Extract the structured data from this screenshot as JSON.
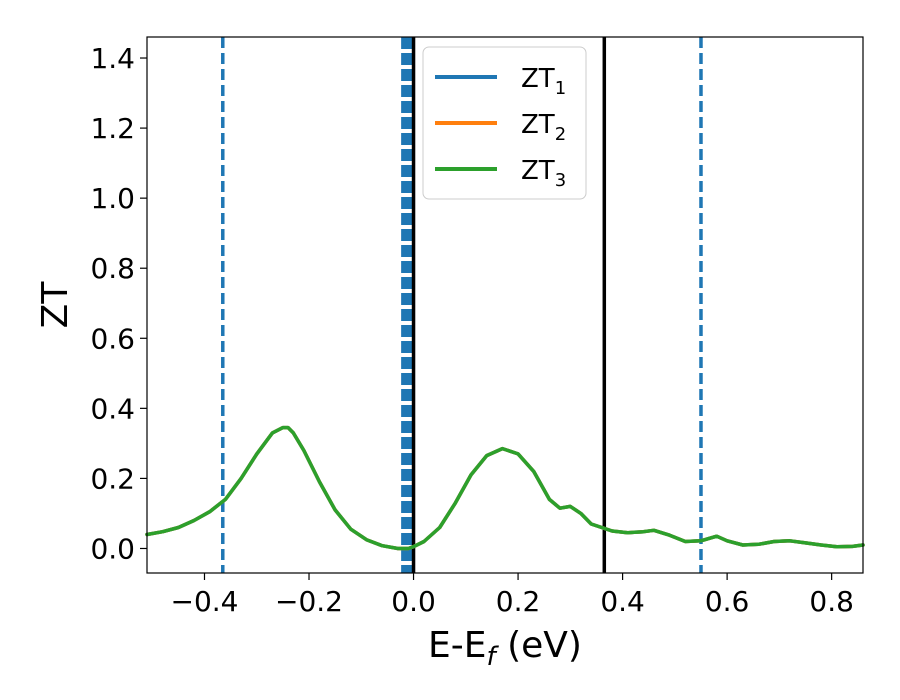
{
  "chart_data": {
    "type": "line",
    "xlabel": "E-E",
    "xlabel_sub": "f",
    "xlabel_unit": " (eV)",
    "ylabel": "ZT",
    "xlim": [
      -0.51,
      0.86
    ],
    "ylim": [
      -0.07,
      1.46
    ],
    "grid": false,
    "legend_position": "top-center",
    "xticks": [
      -0.4,
      -0.2,
      0.0,
      0.2,
      0.4,
      0.6,
      0.8
    ],
    "xtick_labels": [
      "−0.4",
      "−0.2",
      "0.0",
      "0.2",
      "0.4",
      "0.6",
      "0.8"
    ],
    "yticks": [
      0.0,
      0.2,
      0.4,
      0.6,
      0.8,
      1.0,
      1.2,
      1.4
    ],
    "ytick_labels": [
      "0.0",
      "0.2",
      "0.4",
      "0.6",
      "0.8",
      "1.0",
      "1.2",
      "1.4"
    ],
    "x": [
      -0.51,
      -0.48,
      -0.45,
      -0.42,
      -0.39,
      -0.36,
      -0.33,
      -0.3,
      -0.27,
      -0.25,
      -0.24,
      -0.23,
      -0.21,
      -0.18,
      -0.15,
      -0.12,
      -0.09,
      -0.06,
      -0.03,
      -0.01,
      0.0,
      0.02,
      0.05,
      0.08,
      0.11,
      0.14,
      0.17,
      0.2,
      0.23,
      0.26,
      0.28,
      0.3,
      0.32,
      0.34,
      0.36,
      0.38,
      0.41,
      0.44,
      0.46,
      0.49,
      0.52,
      0.55,
      0.58,
      0.6,
      0.63,
      0.66,
      0.69,
      0.72,
      0.75,
      0.78,
      0.81,
      0.84,
      0.86
    ],
    "series": [
      {
        "name": "ZT",
        "name_sub": "1",
        "color": "#1f77b4",
        "values": [
          0.04,
          0.048,
          0.06,
          0.08,
          0.105,
          0.14,
          0.2,
          0.27,
          0.33,
          0.345,
          0.345,
          0.33,
          0.28,
          0.19,
          0.11,
          0.055,
          0.025,
          0.008,
          0.0,
          0.0,
          0.005,
          0.02,
          0.06,
          0.13,
          0.21,
          0.265,
          0.285,
          0.27,
          0.22,
          0.14,
          0.115,
          0.12,
          0.1,
          0.07,
          0.06,
          0.05,
          0.045,
          0.048,
          0.052,
          0.038,
          0.02,
          0.022,
          0.035,
          0.022,
          0.01,
          0.012,
          0.02,
          0.022,
          0.016,
          0.01,
          0.005,
          0.006,
          0.01
        ]
      },
      {
        "name": "ZT",
        "name_sub": "2",
        "color": "#ff7f0e",
        "values": [
          0.04,
          0.048,
          0.06,
          0.08,
          0.105,
          0.14,
          0.2,
          0.27,
          0.33,
          0.345,
          0.345,
          0.33,
          0.28,
          0.19,
          0.11,
          0.055,
          0.025,
          0.008,
          0.0,
          0.0,
          0.005,
          0.02,
          0.06,
          0.13,
          0.21,
          0.265,
          0.285,
          0.27,
          0.22,
          0.14,
          0.115,
          0.12,
          0.1,
          0.07,
          0.06,
          0.05,
          0.045,
          0.048,
          0.052,
          0.038,
          0.02,
          0.022,
          0.035,
          0.022,
          0.01,
          0.012,
          0.02,
          0.022,
          0.016,
          0.01,
          0.005,
          0.006,
          0.01
        ]
      },
      {
        "name": "ZT",
        "name_sub": "3",
        "color": "#2ca02c",
        "values": [
          0.04,
          0.048,
          0.06,
          0.08,
          0.105,
          0.14,
          0.2,
          0.27,
          0.33,
          0.345,
          0.345,
          0.33,
          0.28,
          0.19,
          0.11,
          0.055,
          0.025,
          0.008,
          0.0,
          0.0,
          0.005,
          0.02,
          0.06,
          0.13,
          0.21,
          0.265,
          0.285,
          0.27,
          0.22,
          0.14,
          0.115,
          0.12,
          0.1,
          0.07,
          0.06,
          0.05,
          0.045,
          0.048,
          0.052,
          0.038,
          0.02,
          0.022,
          0.035,
          0.022,
          0.01,
          0.012,
          0.02,
          0.022,
          0.016,
          0.01,
          0.005,
          0.006,
          0.01
        ]
      }
    ],
    "vlines": [
      {
        "x": -0.365,
        "color": "#1f77b4",
        "style": "dashed",
        "weight": "normal"
      },
      {
        "x": -0.018,
        "color": "#1f77b4",
        "style": "dashed",
        "weight": "thick"
      },
      {
        "x": -0.008,
        "color": "#1f77b4",
        "style": "dashed",
        "weight": "thick"
      },
      {
        "x": 0.0,
        "color": "#000000",
        "style": "solid",
        "weight": "normal"
      },
      {
        "x": 0.365,
        "color": "#000000",
        "style": "solid",
        "weight": "normal"
      },
      {
        "x": 0.55,
        "color": "#1f77b4",
        "style": "dashed",
        "weight": "normal"
      }
    ]
  }
}
